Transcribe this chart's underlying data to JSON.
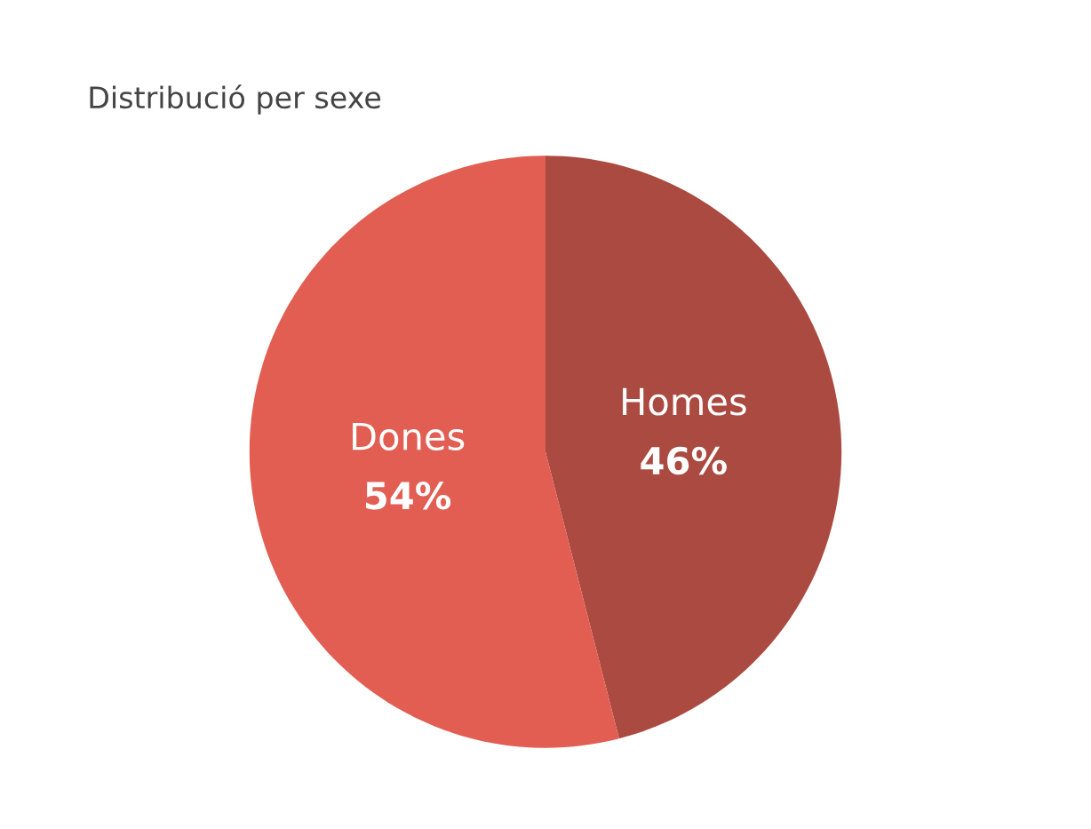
{
  "chart_data": {
    "type": "pie",
    "title": "Distribució per sexe",
    "categories": [
      "Homes",
      "Dones"
    ],
    "values": [
      46,
      54
    ],
    "colors": [
      "#ab4a40",
      "#e25e53"
    ],
    "value_labels": [
      "46%",
      "54%"
    ]
  }
}
